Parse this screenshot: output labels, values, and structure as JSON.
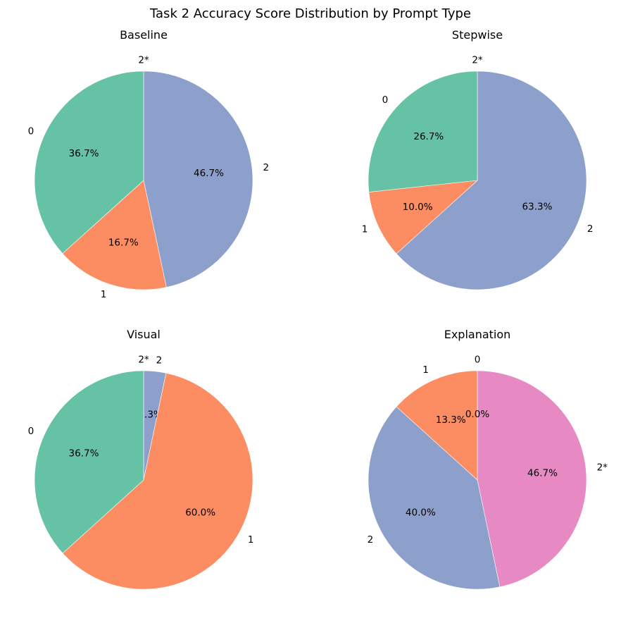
{
  "suptitle": "Task 2 Accuracy Score Distribution by Prompt Type",
  "colors": {
    "0": "#66c2a5",
    "1": "#fc8d62",
    "2": "#8da0cb",
    "2*": "#e78ac3"
  },
  "chart_data": [
    {
      "type": "pie",
      "title": "Baseline",
      "start_angle": 90,
      "direction": "clockwise",
      "slices": [
        {
          "label": "2*",
          "value": 0.0,
          "pct": "0.0%",
          "color_key": "2*"
        },
        {
          "label": "2",
          "value": 46.7,
          "pct": "46.7%",
          "color_key": "2"
        },
        {
          "label": "1",
          "value": 16.7,
          "pct": "16.7%",
          "color_key": "1"
        },
        {
          "label": "0",
          "value": 36.7,
          "pct": "36.7%",
          "color_key": "0"
        }
      ]
    },
    {
      "type": "pie",
      "title": "Stepwise",
      "start_angle": 90,
      "direction": "clockwise",
      "slices": [
        {
          "label": "2*",
          "value": 0.0,
          "pct": "0.0%",
          "color_key": "2*"
        },
        {
          "label": "2",
          "value": 63.3,
          "pct": "63.3%",
          "color_key": "2"
        },
        {
          "label": "1",
          "value": 10.0,
          "pct": "10.0%",
          "color_key": "1"
        },
        {
          "label": "0",
          "value": 26.7,
          "pct": "26.7%",
          "color_key": "0"
        }
      ]
    },
    {
      "type": "pie",
      "title": "Visual",
      "start_angle": 90,
      "direction": "clockwise",
      "slices": [
        {
          "label": "2*",
          "value": 0.0,
          "pct": "0.0%",
          "color_key": "2*"
        },
        {
          "label": "2",
          "value": 3.3,
          "pct": "3.3%",
          "color_key": "2"
        },
        {
          "label": "1",
          "value": 60.0,
          "pct": "60.0%",
          "color_key": "1"
        },
        {
          "label": "0",
          "value": 36.7,
          "pct": "36.7%",
          "color_key": "0"
        }
      ]
    },
    {
      "type": "pie",
      "title": "Explanation",
      "start_angle": 90,
      "direction": "clockwise",
      "slices": [
        {
          "label": "2*",
          "value": 46.7,
          "pct": "46.7%",
          "color_key": "2*"
        },
        {
          "label": "2",
          "value": 40.0,
          "pct": "40.0%",
          "color_key": "2"
        },
        {
          "label": "1",
          "value": 13.3,
          "pct": "13.3%",
          "color_key": "1"
        },
        {
          "label": "0",
          "value": 0.0,
          "pct": "0.0%",
          "color_key": "0"
        }
      ]
    }
  ]
}
